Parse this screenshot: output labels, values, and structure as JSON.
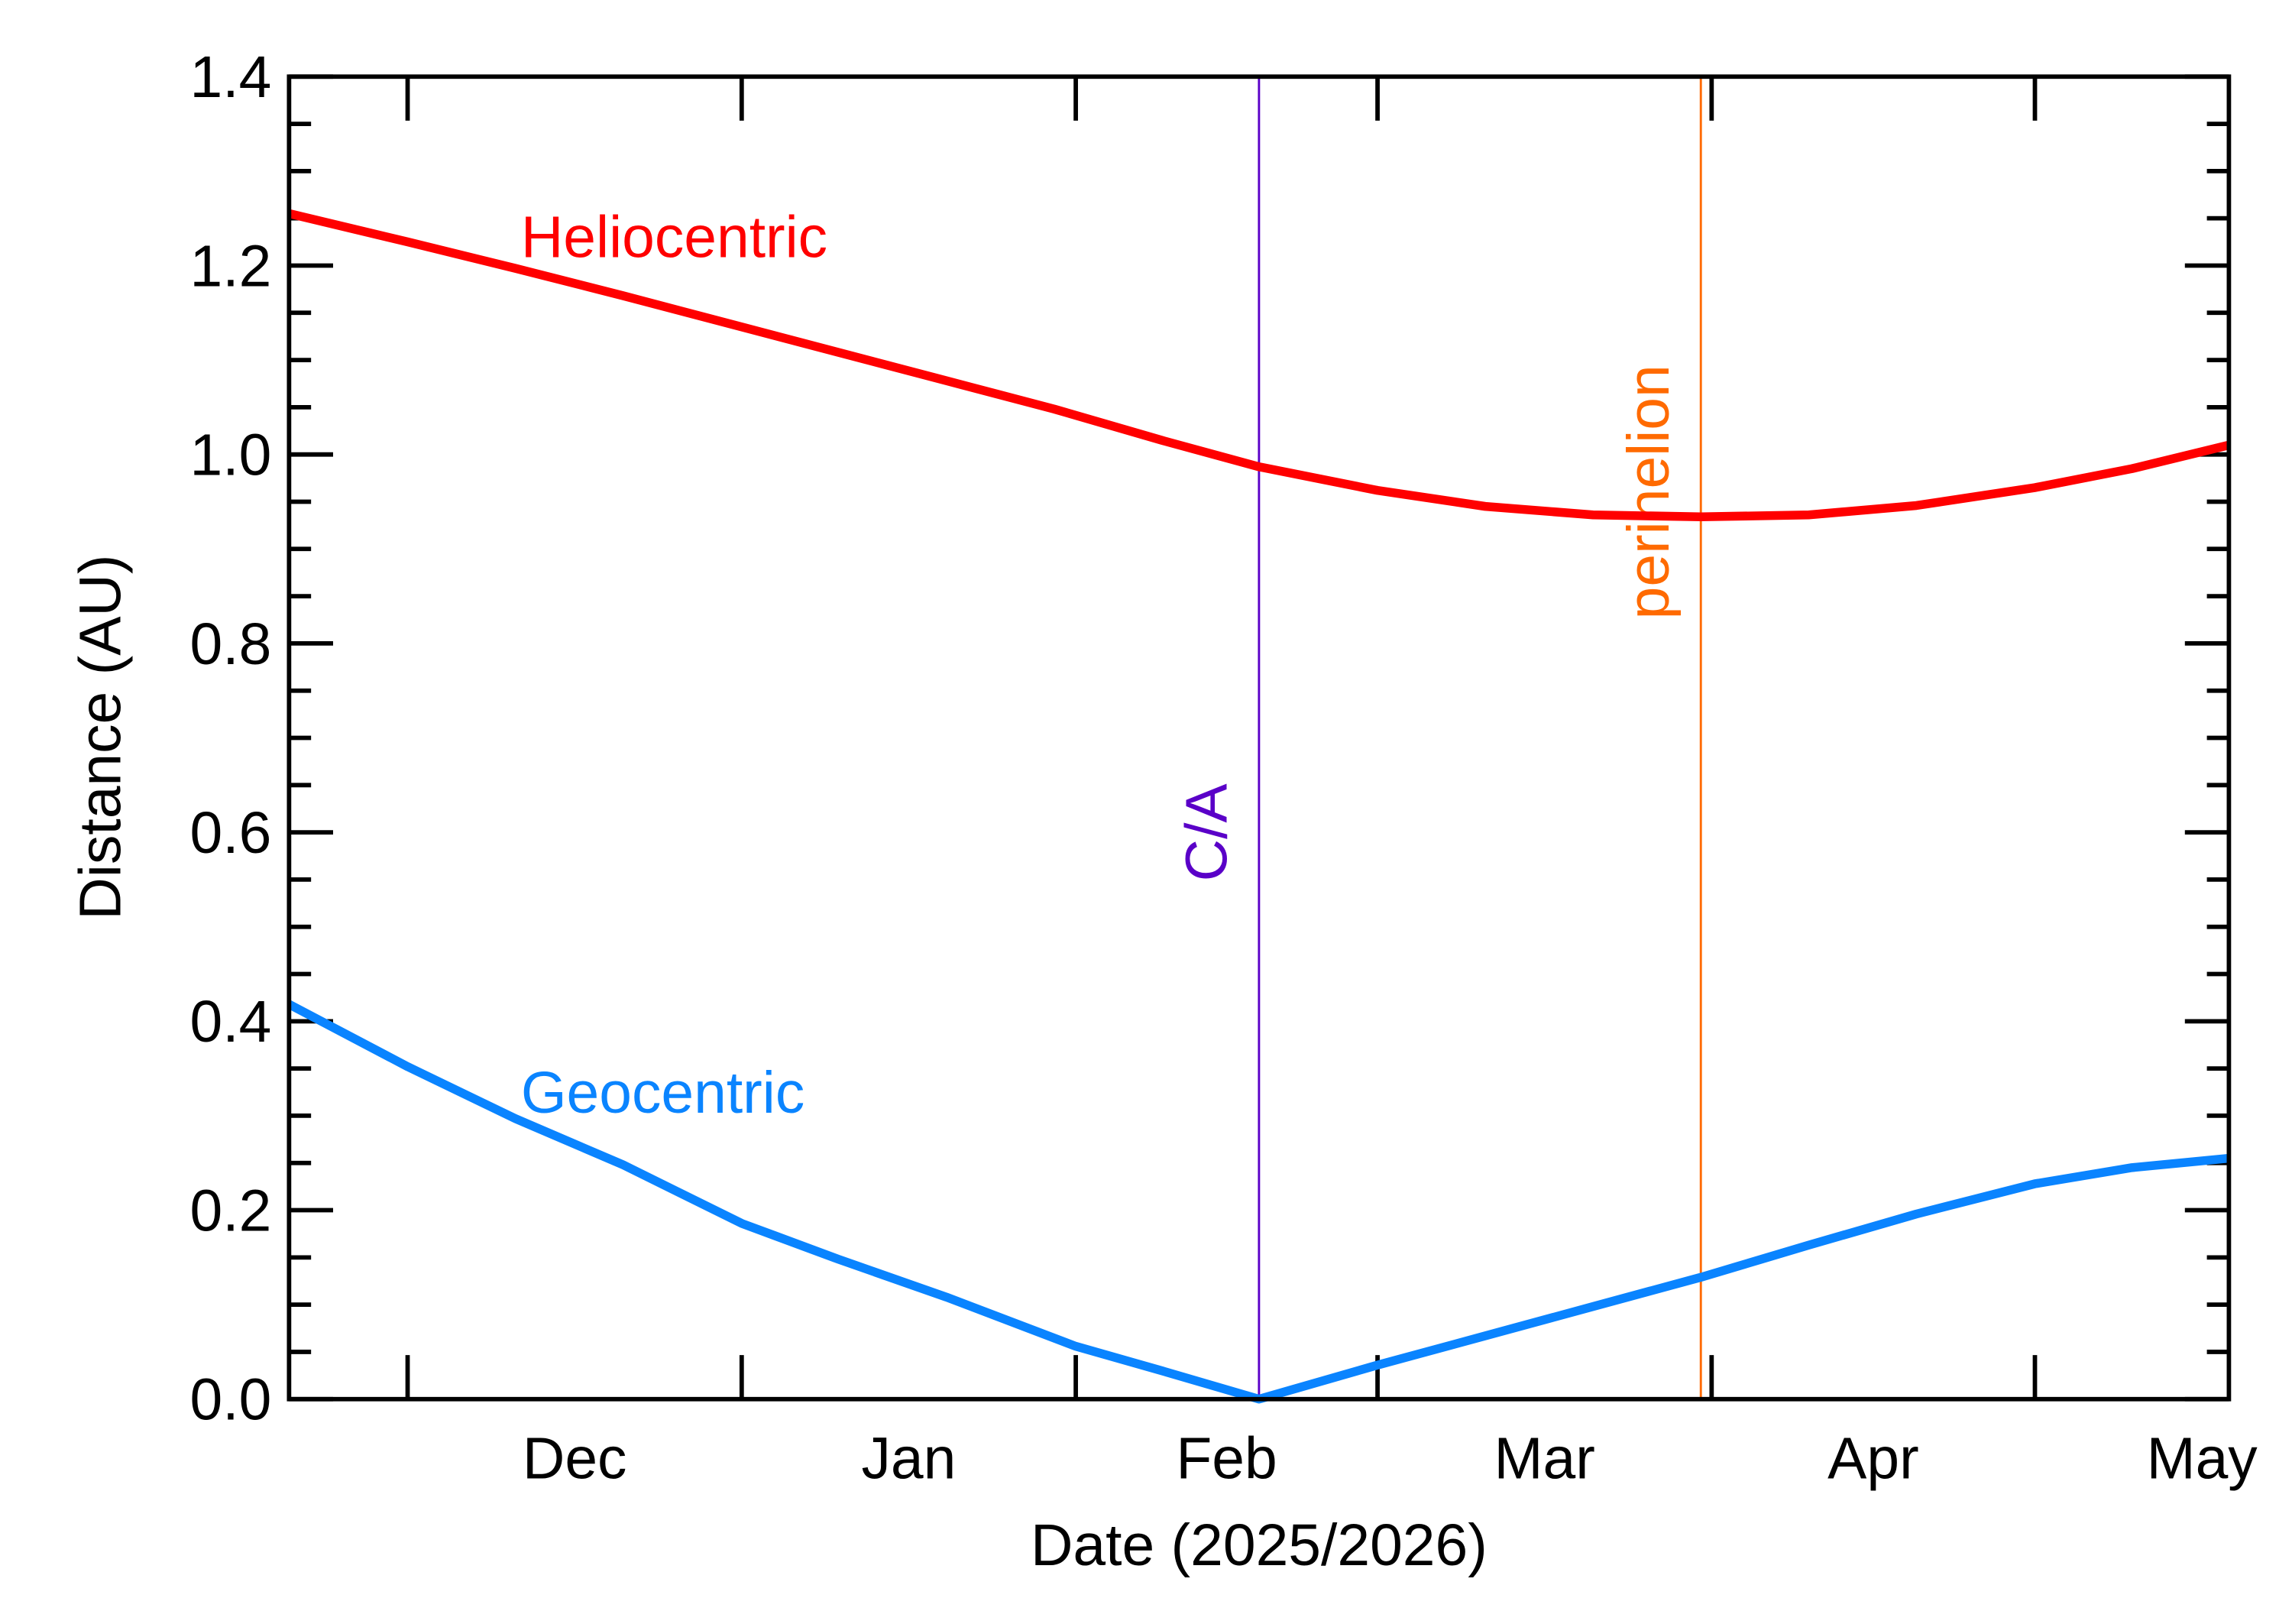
{
  "chart_data": {
    "type": "line",
    "xlabel": "Date (2025/2026)",
    "ylabel": "Distance (AU)",
    "xlim": [
      19,
      199
    ],
    "ylim": [
      0,
      1.4
    ],
    "xticks": [
      {
        "value": 30,
        "label": "Dec"
      },
      {
        "value": 61,
        "label": "Jan"
      },
      {
        "value": 92,
        "label": "Feb"
      },
      {
        "value": 120,
        "label": "Mar"
      },
      {
        "value": 151,
        "label": "Apr"
      },
      {
        "value": 181,
        "label": "May"
      }
    ],
    "yticks": [
      {
        "value": 0,
        "label": "0.0"
      },
      0.2,
      0.4,
      0.6,
      0.8,
      {
        "value": 1,
        "label": "1.0"
      },
      1.2,
      1.4
    ],
    "yminorticks": [
      0.05,
      0.1,
      0.15,
      0.25,
      0.3,
      0.35,
      0.45,
      0.5,
      0.55,
      0.65,
      0.7,
      0.75,
      0.85,
      0.9,
      0.95,
      1.05,
      1.1,
      1.15,
      1.25,
      1.3,
      1.35
    ],
    "series": [
      {
        "name": "Heliocentric",
        "color": "#ff0000",
        "x": [
          19,
          30,
          40,
          50,
          60,
          70,
          80,
          90,
          100,
          109,
          120,
          130,
          140,
          150,
          160,
          170,
          181,
          190,
          199
        ],
        "values": [
          1.255,
          1.225,
          1.197,
          1.168,
          1.138,
          1.108,
          1.078,
          1.048,
          1.015,
          0.987,
          0.962,
          0.945,
          0.936,
          0.934,
          0.936,
          0.946,
          0.965,
          0.985,
          1.01
        ]
      },
      {
        "name": "Geocentric",
        "color": "#0a84ff",
        "x": [
          19,
          30,
          40,
          50,
          61,
          70,
          80,
          92,
          100,
          109,
          120,
          130,
          140,
          150,
          160,
          170,
          181,
          190,
          199
        ],
        "values": [
          0.418,
          0.352,
          0.297,
          0.248,
          0.186,
          0.148,
          0.108,
          0.056,
          0.03,
          0,
          0.036,
          0.067,
          0.098,
          0.129,
          0.163,
          0.196,
          0.228,
          0.245,
          0.255
        ]
      }
    ],
    "vlines": [
      {
        "x": 109,
        "label": "C/A",
        "color": "#5a00c8"
      },
      {
        "x": 150,
        "label": "perihelion",
        "color": "#ff6a00"
      }
    ]
  }
}
